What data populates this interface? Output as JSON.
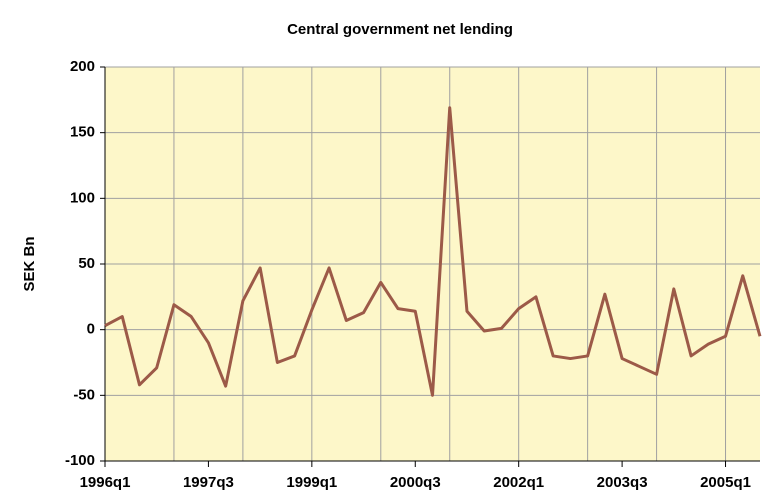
{
  "chart_data": {
    "type": "line",
    "title": "Central government net lending",
    "y_label": "SEK Bn",
    "categories": [
      "1996q1",
      null,
      null,
      null,
      null,
      null,
      "1997q3",
      null,
      null,
      null,
      null,
      null,
      "1999q1",
      null,
      null,
      null,
      null,
      null,
      "2000q3",
      null,
      null,
      null,
      null,
      null,
      "2002q1",
      null,
      null,
      null,
      null,
      null,
      "2003q3",
      null,
      null,
      null,
      null,
      null,
      "2005q1",
      null,
      null
    ],
    "series": [
      {
        "name": "Central government net lending",
        "color": "#9c5a48",
        "values": [
          3,
          10,
          -42,
          -29,
          19,
          10,
          -10,
          -43,
          22,
          47,
          -25,
          -20,
          15,
          47,
          7,
          13,
          36,
          16,
          14,
          -50,
          169,
          14,
          -1,
          1,
          16,
          25,
          -20,
          -22,
          -20,
          27,
          -22,
          -28,
          -34,
          31,
          -20,
          -11,
          -5,
          41,
          -5
        ]
      }
    ],
    "ylim": [
      -100,
      200
    ],
    "yticks": [
      -100,
      -50,
      0,
      50,
      100,
      150,
      200
    ],
    "grid": true,
    "background": "#fdf7c9"
  }
}
